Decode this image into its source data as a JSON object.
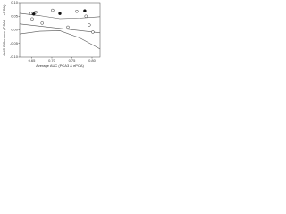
{
  "chart_data": {
    "type": "scatter",
    "x_label": "Average AUC (PCA3 & ePCA)",
    "y_label": "AUC Difference (PCA3 − ePCA)",
    "xlim": [
      0.62,
      0.82
    ],
    "ylim": [
      -0.1,
      0.1
    ],
    "xticks": [
      {
        "value": 0.65,
        "label": "0.65"
      },
      {
        "value": 0.7,
        "label": "0.70"
      },
      {
        "value": 0.75,
        "label": "0.75"
      },
      {
        "value": 0.8,
        "label": "0.80"
      }
    ],
    "yticks": [
      {
        "value": -0.1,
        "label": "-0.10"
      },
      {
        "value": -0.05,
        "label": "-0.05"
      },
      {
        "value": 0,
        "label": "0.00"
      },
      {
        "value": 0.05,
        "label": "0.05"
      },
      {
        "value": 0.1,
        "label": "0.10"
      }
    ],
    "series": [
      {
        "filled": false,
        "color": "#333333",
        "x": [
          0.648,
          0.651,
          0.66,
          0.676,
          0.702,
          0.74,
          0.762,
          0.785,
          0.793,
          0.802
        ],
        "values": [
          0.06,
          0.04,
          0.065,
          0.025,
          0.072,
          0.01,
          0.068,
          0.05,
          0.018,
          -0.008
        ]
      },
      {
        "filled": true,
        "color": "#111111",
        "x": [
          0.655,
          0.72,
          0.782
        ],
        "values": [
          0.058,
          0.06,
          0.07
        ]
      }
    ],
    "lines": [
      {
        "style": "solid",
        "color": "#555555",
        "x": [
          0.62,
          0.82
        ],
        "values": [
          0.022,
          -0.011
        ]
      },
      {
        "style": "solid",
        "color": "#555555",
        "x": [
          0.62,
          0.67,
          0.72,
          0.77,
          0.82
        ],
        "values": [
          0.061,
          0.052,
          0.041,
          0.043,
          0.048
        ]
      },
      {
        "style": "solid",
        "color": "#555555",
        "x": [
          0.62,
          0.67,
          0.72,
          0.77,
          0.82
        ],
        "values": [
          -0.015,
          -0.005,
          -0.003,
          -0.03,
          -0.07
        ]
      }
    ]
  }
}
